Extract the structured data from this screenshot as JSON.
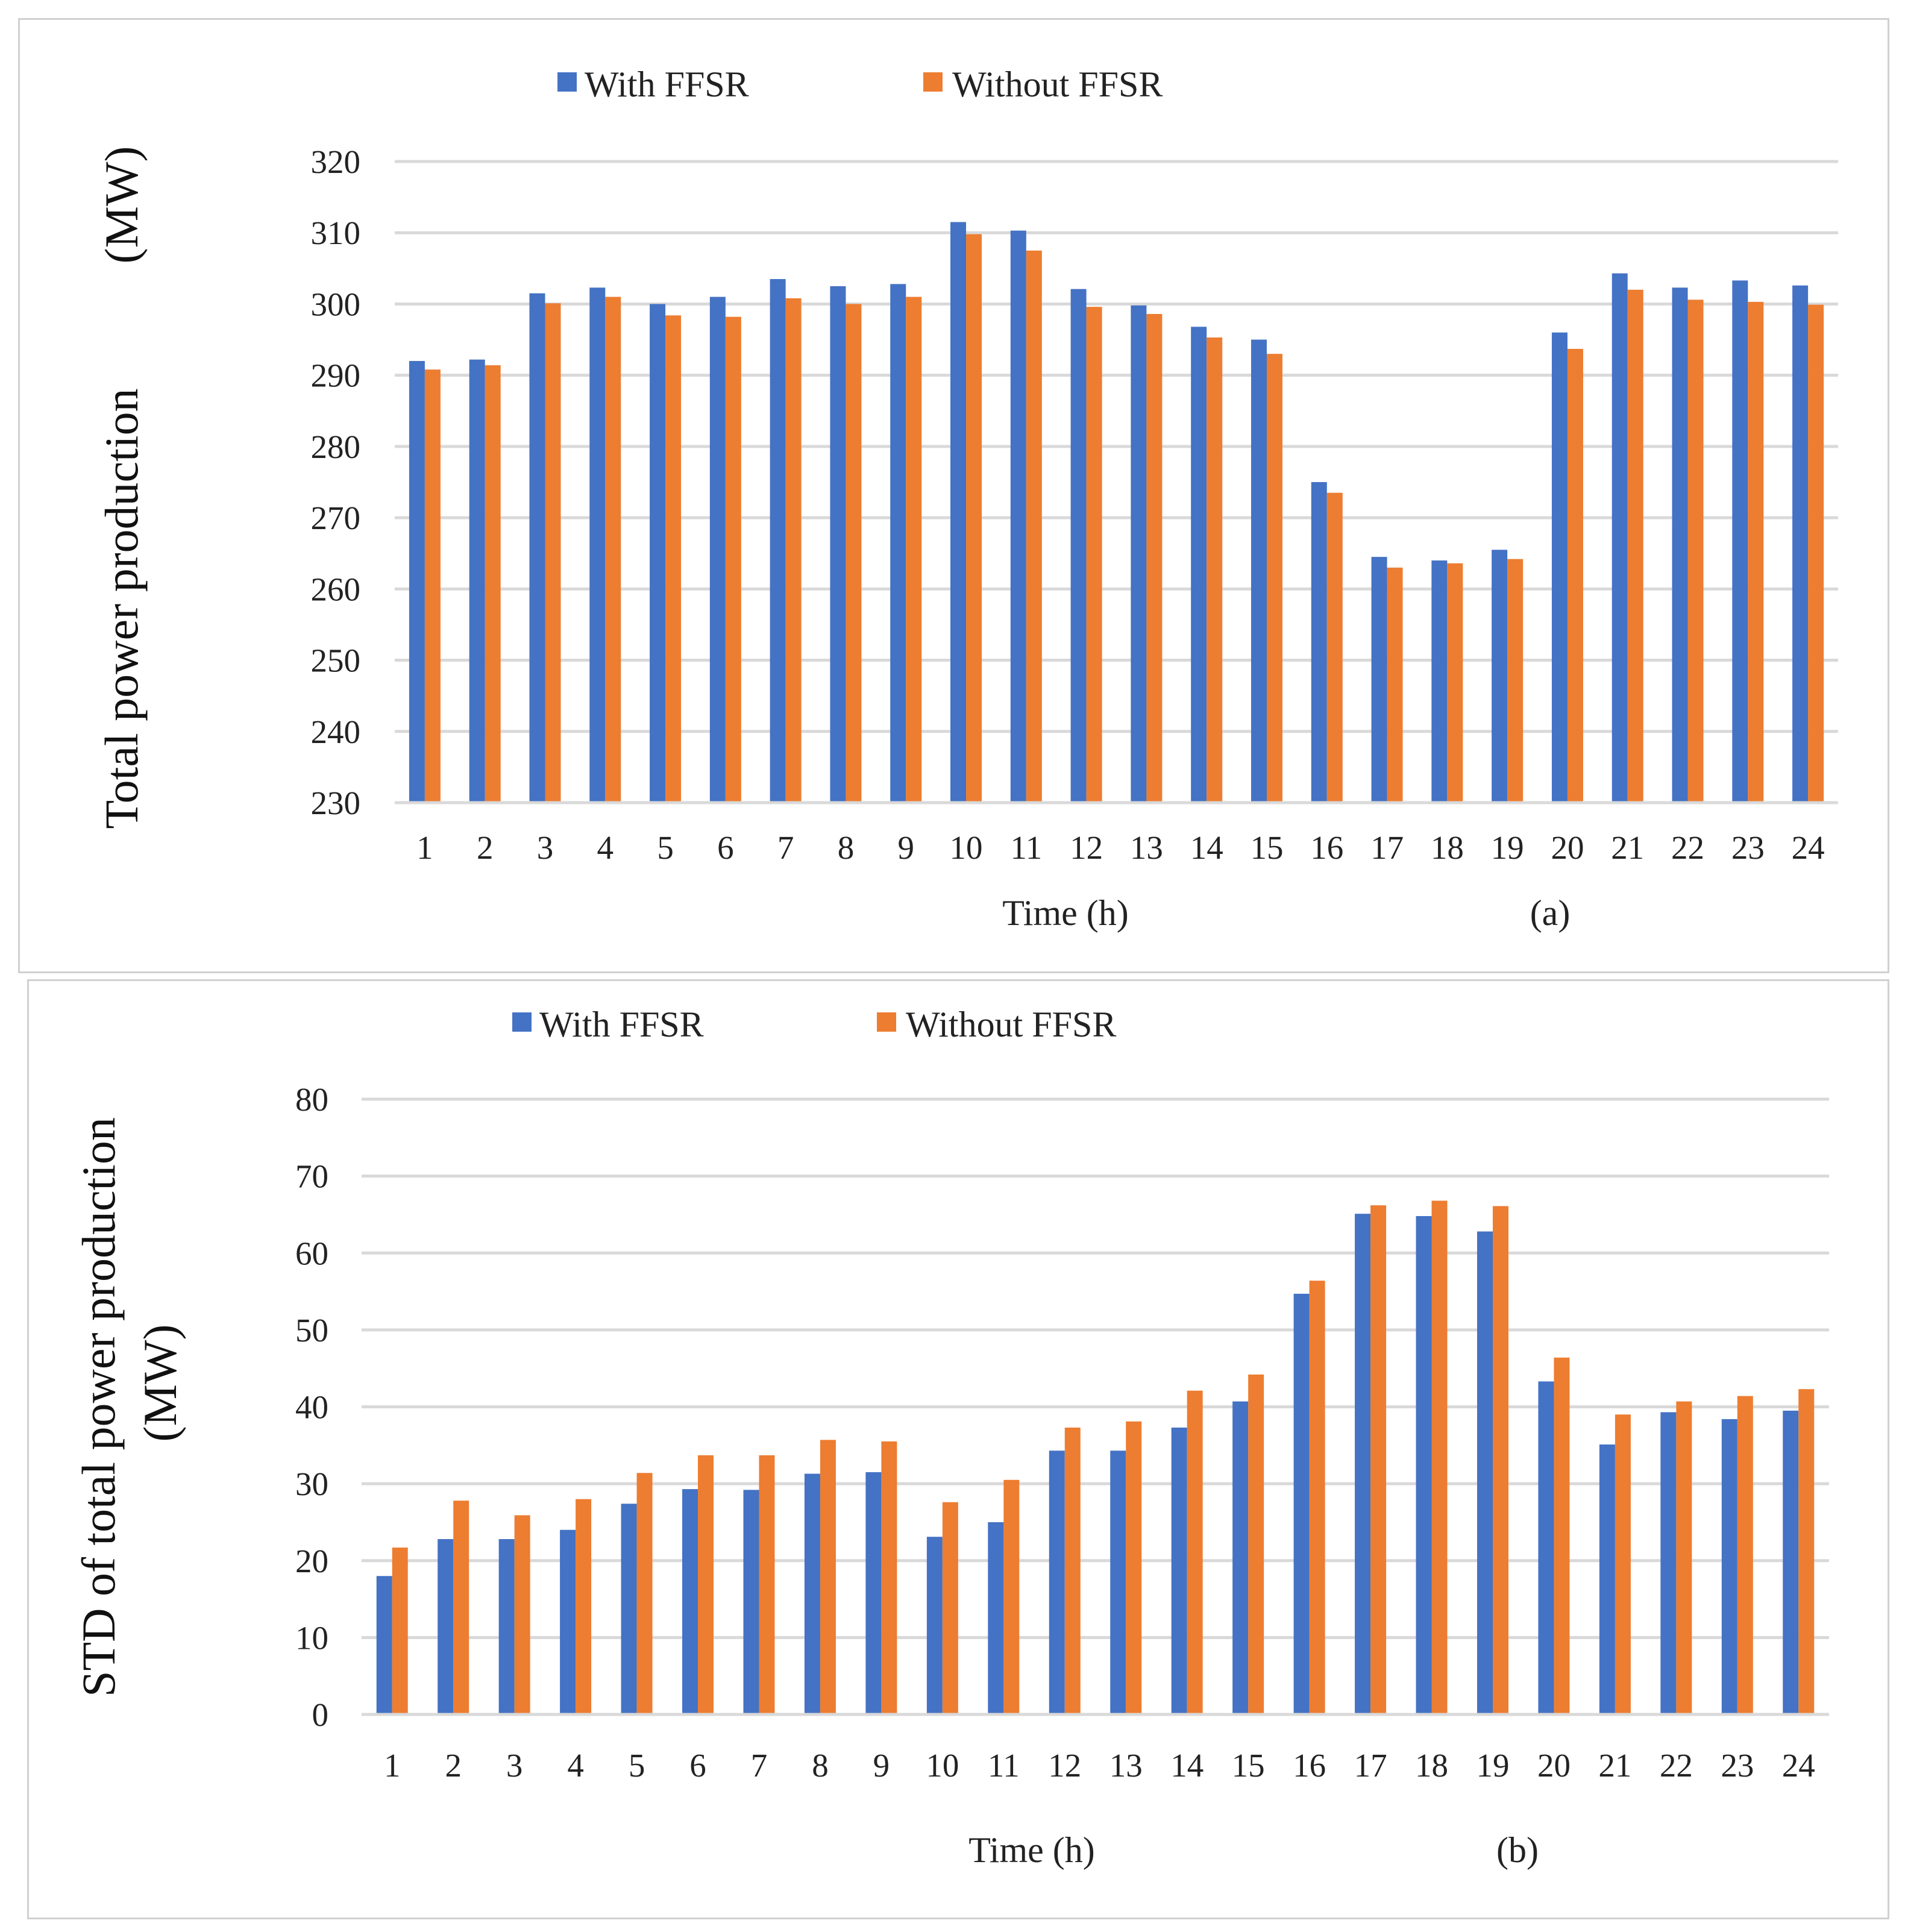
{
  "chart_data": [
    {
      "id": "a",
      "type": "bar",
      "title": "",
      "panel_label": "(a)",
      "xlabel": "Time (h)",
      "ylabel_parts": [
        "Total power production",
        "(MW)"
      ],
      "ylim": [
        230,
        320
      ],
      "ytick_step": 10,
      "grid": true,
      "legend_position": "top-center",
      "categories": [
        "1",
        "2",
        "3",
        "4",
        "5",
        "6",
        "7",
        "8",
        "9",
        "10",
        "11",
        "12",
        "13",
        "14",
        "15",
        "16",
        "17",
        "18",
        "19",
        "20",
        "21",
        "22",
        "23",
        "24"
      ],
      "series": [
        {
          "name": "With FFSR",
          "color": "#4472C4",
          "values": [
            292,
            292.2,
            301.5,
            302.3,
            300,
            301,
            303.5,
            302.5,
            302.8,
            311.5,
            310.3,
            302.1,
            299.8,
            296.8,
            295,
            275,
            264.5,
            264,
            265.5,
            296,
            304.3,
            302.3,
            303.3,
            302.6
          ]
        },
        {
          "name": "Without FFSR",
          "color": "#ED7D31",
          "values": [
            290.8,
            291.4,
            300.1,
            301,
            298.4,
            298.2,
            300.8,
            300,
            301,
            309.8,
            307.5,
            299.6,
            298.6,
            295.3,
            293,
            273.5,
            263,
            263.6,
            264.2,
            293.7,
            302,
            300.6,
            300.3,
            299.9
          ]
        }
      ]
    },
    {
      "id": "b",
      "type": "bar",
      "title": "",
      "panel_label": "(b)",
      "xlabel": "Time (h)",
      "ylabel_parts": [
        "STD of total power production",
        "(MW)"
      ],
      "ylim": [
        0,
        80
      ],
      "ytick_step": 10,
      "grid": true,
      "legend_position": "top-center",
      "categories": [
        "1",
        "2",
        "3",
        "4",
        "5",
        "6",
        "7",
        "8",
        "9",
        "10",
        "11",
        "12",
        "13",
        "14",
        "15",
        "16",
        "17",
        "18",
        "19",
        "20",
        "21",
        "22",
        "23",
        "24"
      ],
      "series": [
        {
          "name": "With FFSR",
          "color": "#4472C4",
          "values": [
            18,
            22.8,
            22.8,
            24,
            27.4,
            29.3,
            29.2,
            31.3,
            31.5,
            23.1,
            25,
            34.3,
            34.3,
            37.3,
            40.7,
            54.7,
            65.1,
            64.8,
            62.8,
            43.3,
            35.1,
            39.3,
            38.4,
            39.5
          ]
        },
        {
          "name": "Without FFSR",
          "color": "#ED7D31",
          "values": [
            21.7,
            27.8,
            25.9,
            28,
            31.4,
            33.7,
            33.7,
            35.7,
            35.5,
            27.6,
            30.5,
            37.3,
            38.1,
            42.1,
            44.2,
            56.4,
            66.2,
            66.8,
            66.1,
            46.4,
            39,
            40.7,
            41.4,
            42.3
          ]
        }
      ]
    }
  ]
}
